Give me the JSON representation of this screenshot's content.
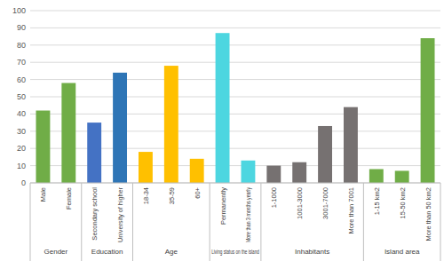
{
  "chart_data": {
    "type": "bar",
    "categories": [
      "Male",
      "Female",
      "Secondary school",
      "University of higher",
      "18-34",
      "35-59",
      "60+",
      "Permanently",
      "More than 3 months yearly",
      "1-1000",
      "1001-3000",
      "3001-7000",
      "More than 7001",
      "1-15 km2",
      "15-50 km2",
      "More than 50 km2"
    ],
    "values": [
      42,
      58,
      35,
      64,
      18,
      68,
      14,
      87,
      13,
      10,
      12,
      33,
      44,
      8,
      7,
      84
    ],
    "colors": [
      "#70ad47",
      "#70ad47",
      "#4472c4",
      "#2e75b6",
      "#ffc000",
      "#ffc000",
      "#ffc000",
      "#4dd6e0",
      "#4dd6e0",
      "#767171",
      "#767171",
      "#767171",
      "#767171",
      "#70ad47",
      "#70ad47",
      "#70ad47"
    ],
    "groups": [
      {
        "label": "Gender",
        "span": 2
      },
      {
        "label": "Education",
        "span": 2
      },
      {
        "label": "Age",
        "span": 3
      },
      {
        "label": "Living status on the island",
        "span": 2
      },
      {
        "label": "Inhabitants",
        "span": 4
      },
      {
        "label": "Island area",
        "span": 3
      }
    ],
    "ylim": [
      0,
      100
    ],
    "yticks": [
      0,
      10,
      20,
      30,
      40,
      50,
      60,
      70,
      80,
      90,
      100
    ],
    "grid": true
  }
}
